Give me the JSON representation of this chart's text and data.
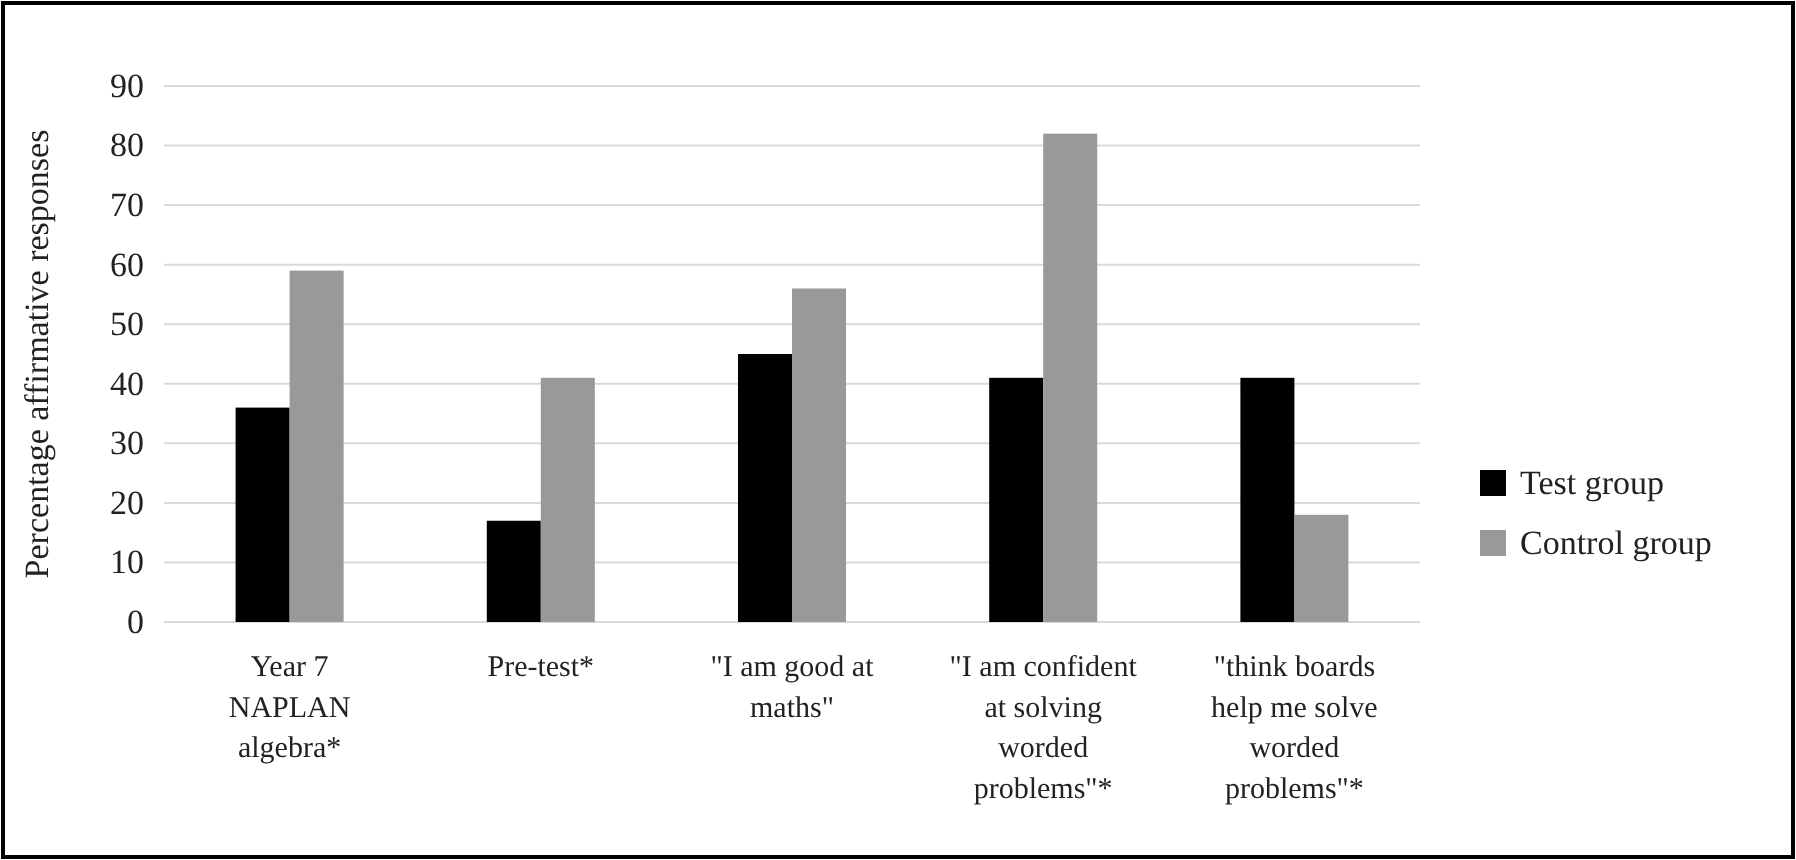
{
  "chart_data": {
    "type": "bar",
    "ylabel": "Percentage affirmative responses",
    "categories": [
      "Year 7 NAPLAN algebra*",
      "Pre-test*",
      "\"I am good at maths\"",
      "\"I am confident at solving worded problems\"*",
      "\"think boards help me solve worded problems\"*"
    ],
    "series": [
      {
        "name": "Test group",
        "color": "#000000",
        "values": [
          36,
          17,
          45,
          41,
          41
        ]
      },
      {
        "name": "Control group",
        "color": "#999999",
        "values": [
          59,
          41,
          56,
          82,
          18
        ]
      }
    ],
    "ylim": [
      0,
      90
    ],
    "yticks": [
      0,
      10,
      20,
      30,
      40,
      50,
      60,
      70,
      80,
      90
    ],
    "grid": "y",
    "legend": "right"
  }
}
